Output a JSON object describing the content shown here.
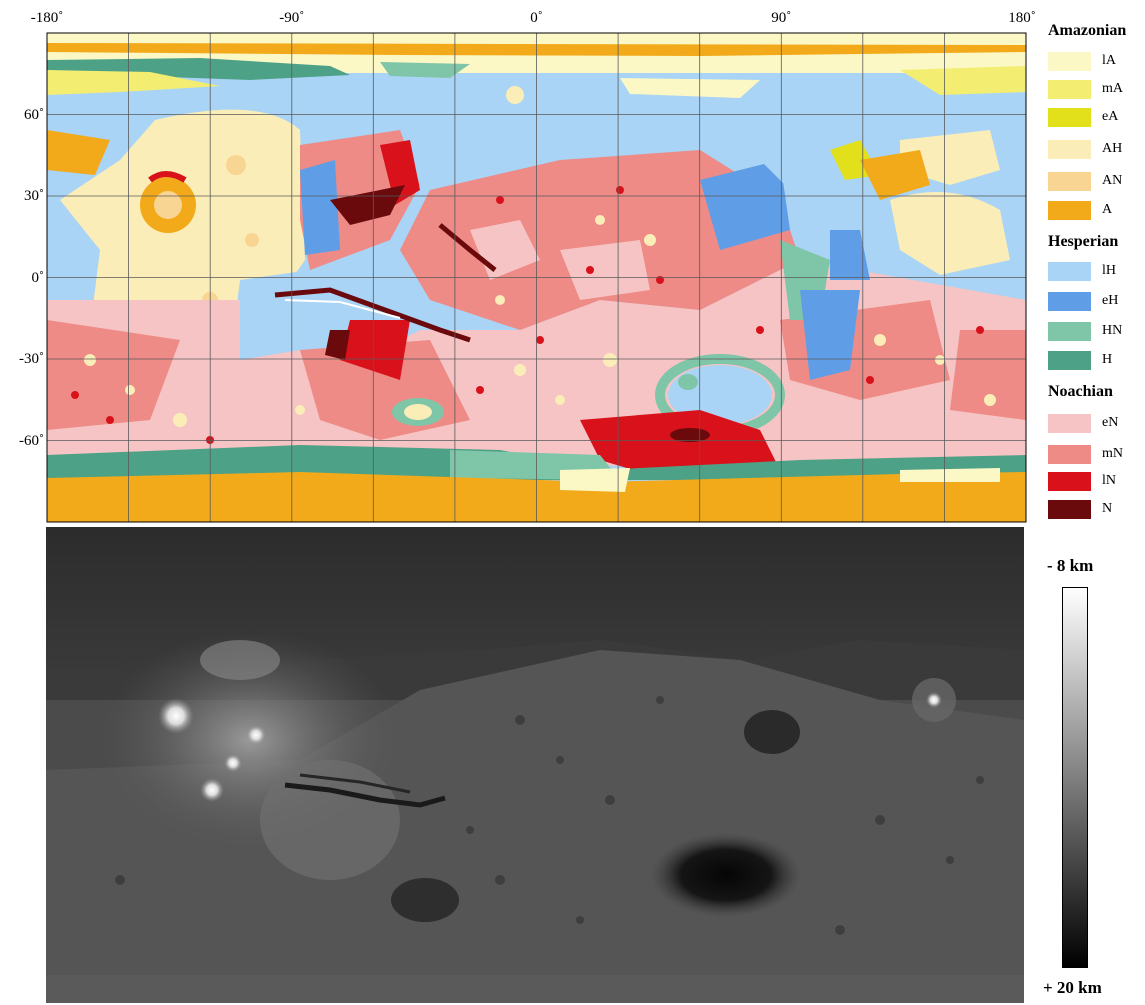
{
  "geologic_map": {
    "lon_ticks": [
      "-180˚",
      "-90˚",
      "0˚",
      "90˚",
      "180˚"
    ],
    "lat_ticks": [
      "60˚",
      "30˚",
      "0˚",
      "-30˚",
      "-60˚"
    ]
  },
  "legend": {
    "groups": [
      {
        "title": "Amazonian",
        "units": [
          {
            "label": "lA",
            "color": "#fbf8c6"
          },
          {
            "label": "mA",
            "color": "#f3ee71"
          },
          {
            "label": "eA",
            "color": "#e2e01b"
          },
          {
            "label": "AH",
            "color": "#fbedb8"
          },
          {
            "label": "AN",
            "color": "#f9d594"
          },
          {
            "label": "A",
            "color": "#f2aa1a"
          }
        ]
      },
      {
        "title": "Hesperian",
        "units": [
          {
            "label": "lH",
            "color": "#a9d4f5"
          },
          {
            "label": "eH",
            "color": "#5f9ee6"
          },
          {
            "label": "HN",
            "color": "#7fc5a7"
          },
          {
            "label": "H",
            "color": "#4da186"
          }
        ]
      },
      {
        "title": "Noachian",
        "units": [
          {
            "label": "eN",
            "color": "#f6c4c4"
          },
          {
            "label": "mN",
            "color": "#ee8b86"
          },
          {
            "label": "lN",
            "color": "#d8111b"
          },
          {
            "label": "N",
            "color": "#6b0a0d"
          }
        ]
      }
    ]
  },
  "elevation": {
    "top_label": "- 8 km",
    "bottom_label": "+ 20 km"
  }
}
